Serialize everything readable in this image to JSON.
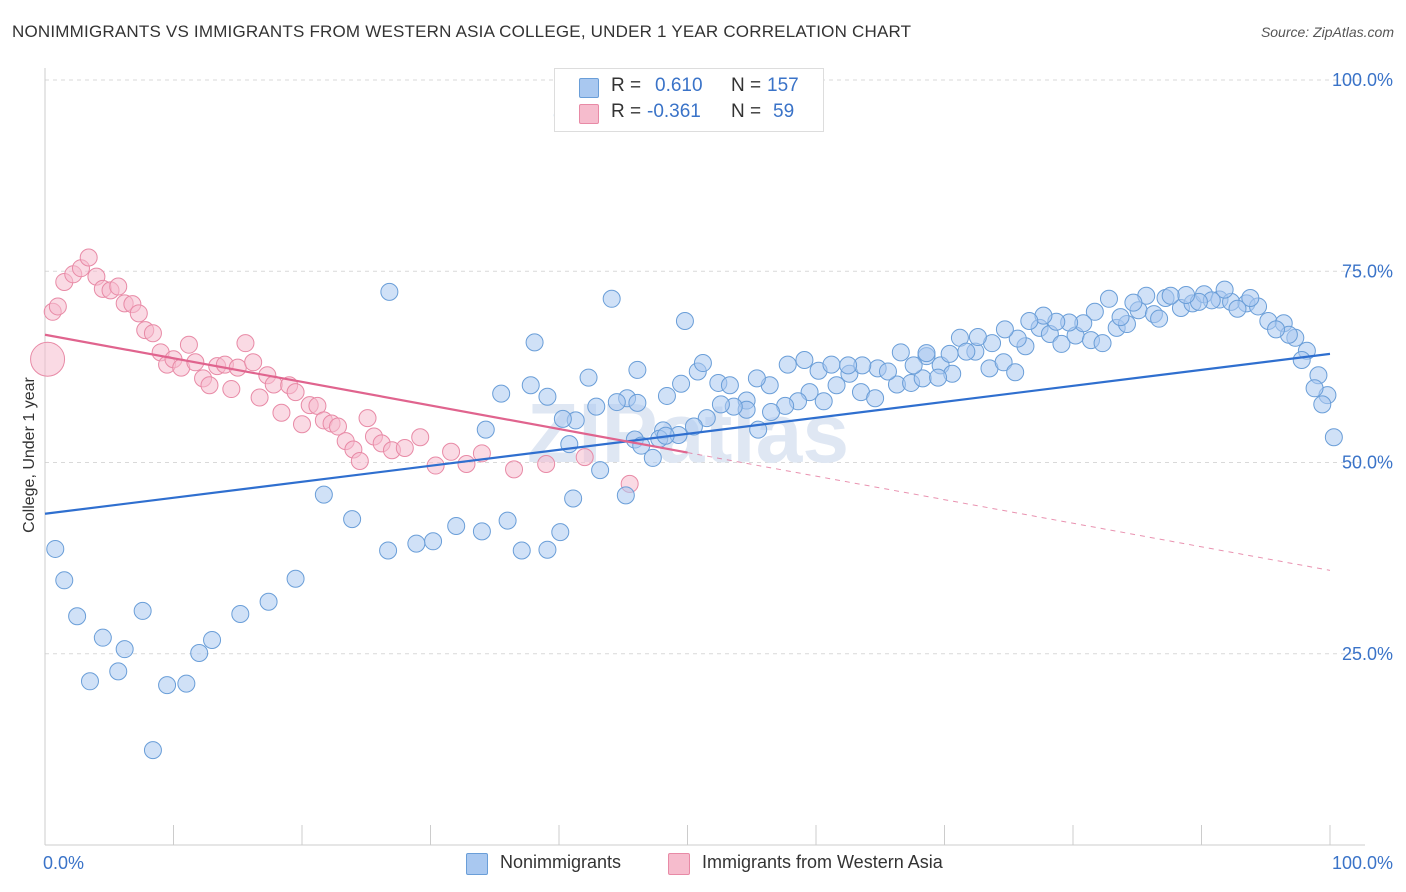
{
  "title": "NONIMMIGRANTS VS IMMIGRANTS FROM WESTERN ASIA COLLEGE, UNDER 1 YEAR CORRELATION CHART",
  "source": "Source: ZipAtlas.com",
  "watermark": "ZIPatlas",
  "legend": {
    "r_label": "R =",
    "n_label": "N =",
    "series1": {
      "r": "0.610",
      "n": "157"
    },
    "series2": {
      "r": "-0.361",
      "n": "59"
    }
  },
  "colors": {
    "blue_fill": "#a9c8f0",
    "blue_stroke": "#6a9ed8",
    "blue_line": "#2f6fcf",
    "pink_fill": "#f6bccd",
    "pink_stroke": "#e88aa6",
    "pink_line": "#e0648e",
    "tick_label": "#3a73c8"
  },
  "chart_data": {
    "type": "scatter",
    "ylabel": "College, Under 1 year",
    "x_tick_labels": [
      "0.0%",
      "100.0%"
    ],
    "y_tick_labels": [
      "100.0%",
      "75.0%",
      "50.0%",
      "25.0%"
    ],
    "xlim": [
      0,
      100
    ],
    "ylim": [
      0,
      100
    ],
    "grid": "horizontal dashed",
    "series": [
      {
        "name": "Nonimmigrants",
        "color": "#a9c8f0",
        "trend": {
          "x": [
            0,
            100
          ],
          "y": [
            43.3,
            64.2
          ]
        },
        "points": [
          [
            40.3,
            95.4
          ],
          [
            46.1,
            62.1
          ],
          [
            26.8,
            72.3
          ],
          [
            44.1,
            71.4
          ],
          [
            38.1,
            65.7
          ],
          [
            49.8,
            68.5
          ],
          [
            35.5,
            59.0
          ],
          [
            37.8,
            60.1
          ],
          [
            39.1,
            58.6
          ],
          [
            34.3,
            54.3
          ],
          [
            42.9,
            57.3
          ],
          [
            45.3,
            58.4
          ],
          [
            48.4,
            58.7
          ],
          [
            48.1,
            54.2
          ],
          [
            46.1,
            57.8
          ],
          [
            50.8,
            61.9
          ],
          [
            51.2,
            63.0
          ],
          [
            49.5,
            60.3
          ],
          [
            44.5,
            57.9
          ],
          [
            42.3,
            61.1
          ],
          [
            41.3,
            55.5
          ],
          [
            40.3,
            55.7
          ],
          [
            40.8,
            52.4
          ],
          [
            45.9,
            53.0
          ],
          [
            47.8,
            53.1
          ],
          [
            52.4,
            60.4
          ],
          [
            53.3,
            60.1
          ],
          [
            54.6,
            58.1
          ],
          [
            56.4,
            60.1
          ],
          [
            55.4,
            61.0
          ],
          [
            57.8,
            62.8
          ],
          [
            59.1,
            63.4
          ],
          [
            60.2,
            62.0
          ],
          [
            61.2,
            62.8
          ],
          [
            62.6,
            61.6
          ],
          [
            63.5,
            59.2
          ],
          [
            64.8,
            62.3
          ],
          [
            66.3,
            60.2
          ],
          [
            67.4,
            60.4
          ],
          [
            68.3,
            61.0
          ],
          [
            68.6,
            63.9
          ],
          [
            69.7,
            62.7
          ],
          [
            70.4,
            64.2
          ],
          [
            71.2,
            66.3
          ],
          [
            72.4,
            64.5
          ],
          [
            73.5,
            62.3
          ],
          [
            74.6,
            63.1
          ],
          [
            75.5,
            61.8
          ],
          [
            76.3,
            65.2
          ],
          [
            77.4,
            67.6
          ],
          [
            78.2,
            66.8
          ],
          [
            79.1,
            65.5
          ],
          [
            80.2,
            66.6
          ],
          [
            81.4,
            66.0
          ],
          [
            82.3,
            65.6
          ],
          [
            83.4,
            67.6
          ],
          [
            84.2,
            68.1
          ],
          [
            85.1,
            69.9
          ],
          [
            86.3,
            69.4
          ],
          [
            87.2,
            71.5
          ],
          [
            88.4,
            70.2
          ],
          [
            89.3,
            70.8
          ],
          [
            90.2,
            72.0
          ],
          [
            91.4,
            71.3
          ],
          [
            92.3,
            71.0
          ],
          [
            93.5,
            70.8
          ],
          [
            94.4,
            70.4
          ],
          [
            95.2,
            68.5
          ],
          [
            96.4,
            68.2
          ],
          [
            97.3,
            66.3
          ],
          [
            98.2,
            64.6
          ],
          [
            99.1,
            61.4
          ],
          [
            99.8,
            58.8
          ],
          [
            100.3,
            53.3
          ],
          [
            99.4,
            57.6
          ],
          [
            98.8,
            59.7
          ],
          [
            97.8,
            63.4
          ],
          [
            96.8,
            66.7
          ],
          [
            95.8,
            67.4
          ],
          [
            93.8,
            71.5
          ],
          [
            92.8,
            70.1
          ],
          [
            91.8,
            72.6
          ],
          [
            90.8,
            71.2
          ],
          [
            89.8,
            71.0
          ],
          [
            88.8,
            71.9
          ],
          [
            87.6,
            71.8
          ],
          [
            86.7,
            68.8
          ],
          [
            85.7,
            71.8
          ],
          [
            84.7,
            70.9
          ],
          [
            83.7,
            69.0
          ],
          [
            82.8,
            71.4
          ],
          [
            81.7,
            69.7
          ],
          [
            80.8,
            68.2
          ],
          [
            79.7,
            68.3
          ],
          [
            78.7,
            68.4
          ],
          [
            77.7,
            69.2
          ],
          [
            76.6,
            68.5
          ],
          [
            75.7,
            66.2
          ],
          [
            74.7,
            67.4
          ],
          [
            73.7,
            65.6
          ],
          [
            72.6,
            66.4
          ],
          [
            71.7,
            64.5
          ],
          [
            70.6,
            61.6
          ],
          [
            69.5,
            61.1
          ],
          [
            68.6,
            64.3
          ],
          [
            67.6,
            62.7
          ],
          [
            66.6,
            64.4
          ],
          [
            65.6,
            61.9
          ],
          [
            64.6,
            58.4
          ],
          [
            63.6,
            62.7
          ],
          [
            62.5,
            62.7
          ],
          [
            61.6,
            60.1
          ],
          [
            60.6,
            58.0
          ],
          [
            59.5,
            59.2
          ],
          [
            58.6,
            58.0
          ],
          [
            57.6,
            57.4
          ],
          [
            56.5,
            56.6
          ],
          [
            55.5,
            54.3
          ],
          [
            54.6,
            56.9
          ],
          [
            53.6,
            57.3
          ],
          [
            52.6,
            57.6
          ],
          [
            51.5,
            55.8
          ],
          [
            50.5,
            54.7
          ],
          [
            49.3,
            53.6
          ],
          [
            48.3,
            53.5
          ],
          [
            47.3,
            50.6
          ],
          [
            46.4,
            52.2
          ],
          [
            45.2,
            45.7
          ],
          [
            43.2,
            49.0
          ],
          [
            41.1,
            45.3
          ],
          [
            40.1,
            40.9
          ],
          [
            39.1,
            38.6
          ],
          [
            37.1,
            38.5
          ],
          [
            36.0,
            42.4
          ],
          [
            34.0,
            41.0
          ],
          [
            32.0,
            41.7
          ],
          [
            30.2,
            39.7
          ],
          [
            28.9,
            39.4
          ],
          [
            26.7,
            38.5
          ],
          [
            23.9,
            42.6
          ],
          [
            21.7,
            45.8
          ],
          [
            19.5,
            34.8
          ],
          [
            17.4,
            31.8
          ],
          [
            15.2,
            30.2
          ],
          [
            13.0,
            26.8
          ],
          [
            12.0,
            25.1
          ],
          [
            11.0,
            21.1
          ],
          [
            9.5,
            20.9
          ],
          [
            8.4,
            12.4
          ],
          [
            7.6,
            30.6
          ],
          [
            6.2,
            25.6
          ],
          [
            5.7,
            22.7
          ],
          [
            4.5,
            27.1
          ],
          [
            3.5,
            21.4
          ],
          [
            2.5,
            29.9
          ],
          [
            1.5,
            34.6
          ],
          [
            0.8,
            38.7
          ]
        ]
      },
      {
        "name": "Immigrants from Western Asia",
        "color": "#f6bccd",
        "trend": {
          "x": [
            0,
            50
          ],
          "y": [
            66.7,
            51.3
          ]
        },
        "points": [
          [
            0.2,
            63.5
          ],
          [
            0.6,
            69.7
          ],
          [
            1.0,
            70.4
          ],
          [
            1.5,
            73.6
          ],
          [
            2.2,
            74.6
          ],
          [
            2.8,
            75.4
          ],
          [
            3.4,
            76.8
          ],
          [
            4.0,
            74.3
          ],
          [
            4.5,
            72.7
          ],
          [
            5.1,
            72.5
          ],
          [
            5.7,
            73.0
          ],
          [
            6.2,
            70.8
          ],
          [
            6.8,
            70.7
          ],
          [
            7.3,
            69.5
          ],
          [
            7.8,
            67.3
          ],
          [
            8.4,
            66.9
          ],
          [
            9.0,
            64.4
          ],
          [
            9.5,
            62.8
          ],
          [
            10.0,
            63.5
          ],
          [
            10.6,
            62.4
          ],
          [
            11.2,
            65.4
          ],
          [
            11.7,
            63.1
          ],
          [
            12.3,
            61.0
          ],
          [
            12.8,
            60.1
          ],
          [
            13.4,
            62.6
          ],
          [
            14.0,
            62.8
          ],
          [
            14.5,
            59.6
          ],
          [
            15.0,
            62.4
          ],
          [
            15.6,
            65.6
          ],
          [
            16.2,
            63.1
          ],
          [
            16.7,
            58.5
          ],
          [
            17.3,
            61.4
          ],
          [
            17.8,
            60.2
          ],
          [
            18.4,
            56.5
          ],
          [
            19.0,
            60.1
          ],
          [
            19.5,
            59.2
          ],
          [
            20.0,
            55.0
          ],
          [
            20.6,
            57.5
          ],
          [
            21.2,
            57.4
          ],
          [
            21.7,
            55.5
          ],
          [
            22.3,
            55.1
          ],
          [
            22.8,
            54.7
          ],
          [
            23.4,
            52.8
          ],
          [
            24.0,
            51.7
          ],
          [
            24.5,
            50.2
          ],
          [
            25.1,
            55.8
          ],
          [
            25.6,
            53.4
          ],
          [
            26.2,
            52.5
          ],
          [
            27.0,
            51.6
          ],
          [
            28.0,
            51.9
          ],
          [
            29.2,
            53.3
          ],
          [
            30.4,
            49.6
          ],
          [
            31.6,
            51.4
          ],
          [
            32.8,
            49.8
          ],
          [
            34.0,
            51.2
          ],
          [
            36.5,
            49.1
          ],
          [
            39.0,
            49.8
          ],
          [
            42.0,
            50.7
          ],
          [
            45.5,
            47.2
          ]
        ]
      }
    ]
  }
}
